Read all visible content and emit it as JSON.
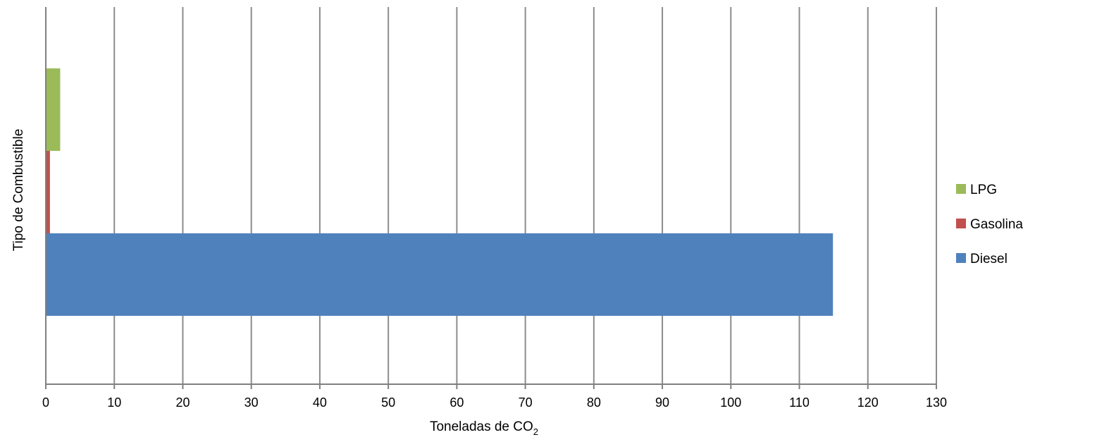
{
  "chart_data": {
    "type": "bar",
    "orientation": "horizontal",
    "title": "",
    "xlabel": "Toneladas de CO",
    "xlabel_subscript": "2",
    "ylabel": "Tipo de Combustible",
    "xlim": [
      0,
      130
    ],
    "xticks": [
      "0",
      "10",
      "20",
      "30",
      "40",
      "50",
      "60",
      "70",
      "80",
      "90",
      "100",
      "110",
      "120",
      "130"
    ],
    "grid": "vertical",
    "legend_position": "right",
    "series": [
      {
        "name": "Diesel",
        "value": 114.8,
        "color": "#4F81BD"
      },
      {
        "name": "Gasolina",
        "value": 0.5,
        "color": "#C0504D"
      },
      {
        "name": "LPG",
        "value": 2.0,
        "color": "#9BBB59"
      }
    ],
    "legend_order": [
      "LPG",
      "Gasolina",
      "Diesel"
    ]
  }
}
